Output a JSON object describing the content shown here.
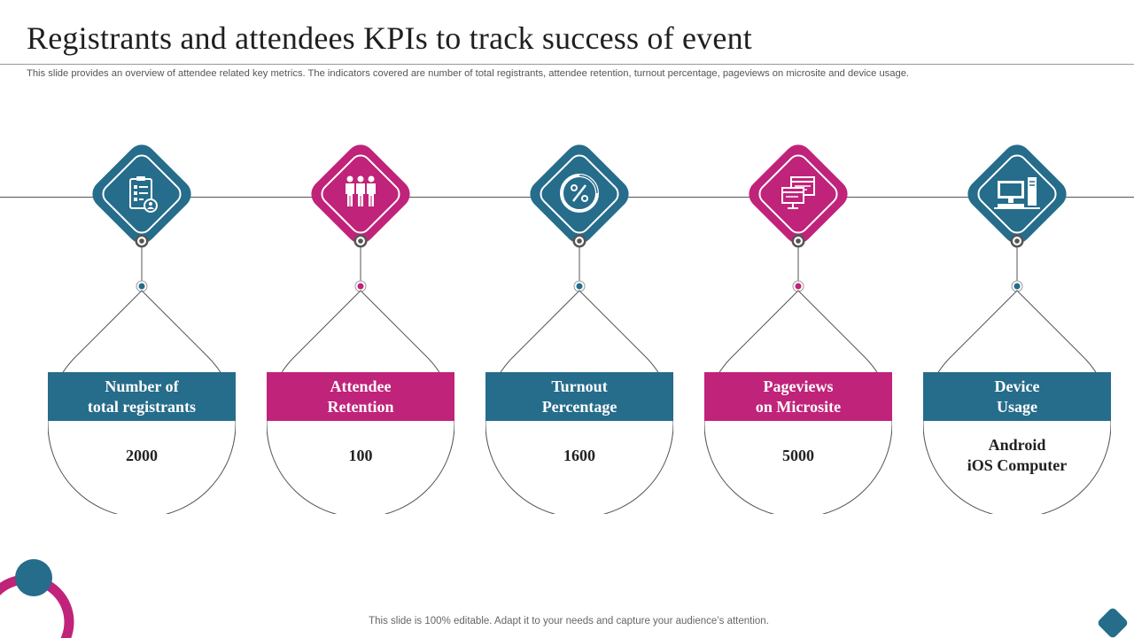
{
  "slide": {
    "title": "Registrants and attendees KPIs to track success of event",
    "subtitle": "This slide provides an overview of attendee related key metrics. The indicators covered are number of total registrants, attendee retention, turnout percentage, pageviews on microsite and device usage.",
    "footer": "This slide is 100% editable. Adapt it to your needs and capture your audience’s attention."
  },
  "colors": {
    "blue": "#266c8b",
    "pink": "#c0237a",
    "line": "#555555"
  },
  "kpis": [
    {
      "label_line1": "Number of",
      "label_line2": "total registrants",
      "value_line1": "2000",
      "value_line2": "",
      "icon": "registration-clipboard-icon",
      "color": "blue"
    },
    {
      "label_line1": "Attendee",
      "label_line2": "Retention",
      "value_line1": "100",
      "value_line2": "",
      "icon": "people-group-icon",
      "color": "pink"
    },
    {
      "label_line1": "Turnout",
      "label_line2": "Percentage",
      "value_line1": "1600",
      "value_line2": "",
      "icon": "percentage-icon",
      "color": "blue"
    },
    {
      "label_line1": "Pageviews",
      "label_line2": "on Microsite",
      "value_line1": "5000",
      "value_line2": "",
      "icon": "browser-window-icon",
      "color": "pink"
    },
    {
      "label_line1": "Device",
      "label_line2": "Usage",
      "value_line1": "Android",
      "value_line2": "iOS Computer",
      "icon": "desktop-computer-icon",
      "color": "blue"
    }
  ]
}
